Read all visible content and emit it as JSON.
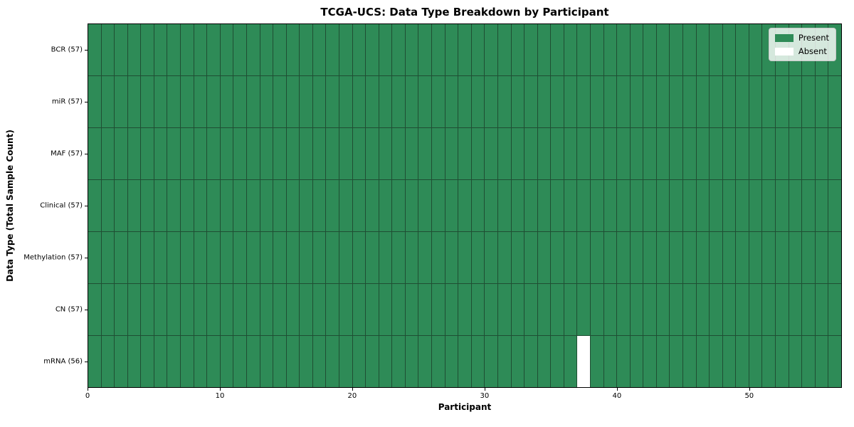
{
  "chart_data": {
    "type": "heatmap",
    "title": "TCGA-UCS: Data Type Breakdown by Participant",
    "xlabel": "Participant",
    "ylabel": "Data Type (Total Sample Count)",
    "n_participants": 57,
    "xlim": [
      0,
      57
    ],
    "x_ticks": [
      0,
      10,
      20,
      30,
      40,
      50
    ],
    "rows": [
      {
        "data_type": "BCR",
        "label": "BCR (57)",
        "present_count": 57,
        "absent_participants": []
      },
      {
        "data_type": "miR",
        "label": "miR (57)",
        "present_count": 57,
        "absent_participants": []
      },
      {
        "data_type": "MAF",
        "label": "MAF (57)",
        "present_count": 57,
        "absent_participants": []
      },
      {
        "data_type": "Clinical",
        "label": "Clinical (57)",
        "present_count": 57,
        "absent_participants": []
      },
      {
        "data_type": "Methylation",
        "label": "Methylation (57)",
        "present_count": 57,
        "absent_participants": []
      },
      {
        "data_type": "CN",
        "label": "CN (57)",
        "present_count": 57,
        "absent_participants": []
      },
      {
        "data_type": "mRNA",
        "label": "mRNA (56)",
        "present_count": 56,
        "absent_participants": [
          37
        ]
      }
    ],
    "legend": {
      "position": "upper right",
      "entries": [
        {
          "label": "Present",
          "color": "#2e8b57"
        },
        {
          "label": "Absent",
          "color": "#ffffff"
        }
      ]
    },
    "colors": {
      "present": "#2e8b57",
      "absent": "#ffffff",
      "grid_line": "#1f4e33",
      "plot_border": "#000000"
    }
  }
}
